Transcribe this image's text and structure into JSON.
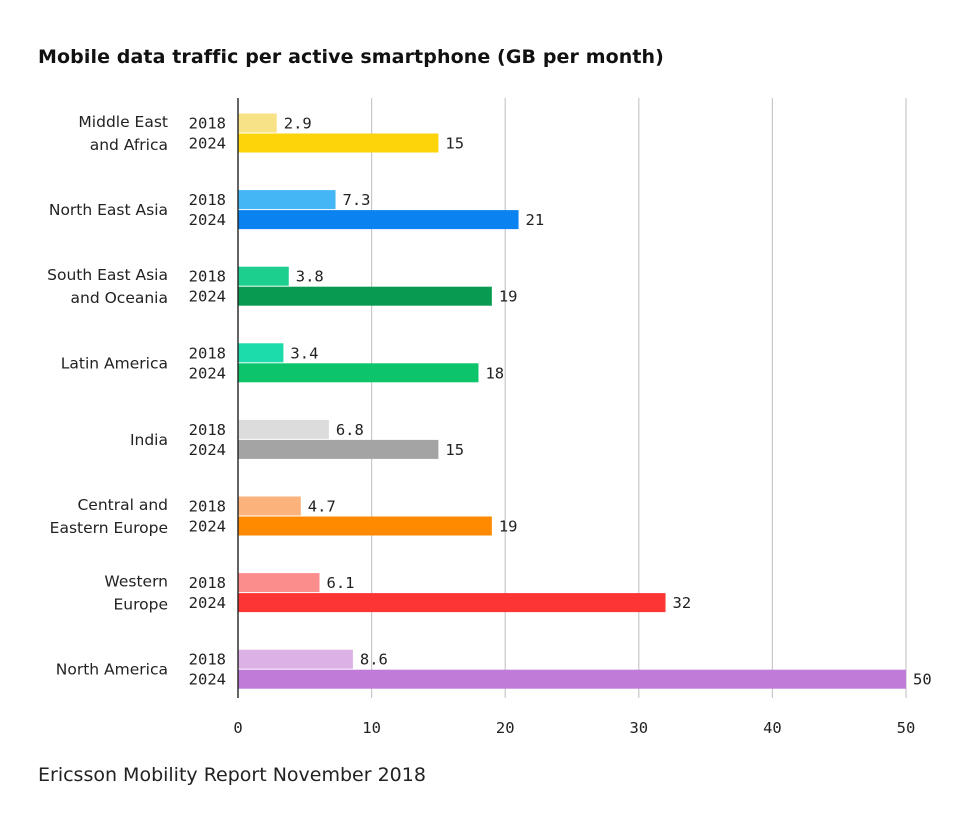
{
  "chart_data": {
    "type": "bar",
    "orientation": "horizontal",
    "title": "Mobile data traffic per active smartphone (GB per month)",
    "xlim": [
      0,
      50
    ],
    "xticks": [
      "0",
      "10",
      "20",
      "30",
      "40",
      "50"
    ],
    "xlabel": "",
    "ylabel": "",
    "grid": true,
    "series_names": [
      "2018",
      "2024"
    ],
    "categories": [
      {
        "lines": [
          "Middle East",
          "and Africa"
        ],
        "values": [
          2.9,
          15
        ],
        "labels": [
          "2.9",
          "15"
        ],
        "colors": [
          "#f8e286",
          "#fdd40a"
        ]
      },
      {
        "lines": [
          "North East Asia"
        ],
        "values": [
          7.3,
          21
        ],
        "labels": [
          "7.3",
          "21"
        ],
        "colors": [
          "#44b5f5",
          "#0a82f0"
        ]
      },
      {
        "lines": [
          "South East Asia",
          "and Oceania"
        ],
        "values": [
          3.8,
          19
        ],
        "labels": [
          "3.8",
          "19"
        ],
        "colors": [
          "#1ccf8f",
          "#089a50"
        ]
      },
      {
        "lines": [
          "Latin America"
        ],
        "values": [
          3.4,
          18
        ],
        "labels": [
          "3.4",
          "18"
        ],
        "colors": [
          "#1bdcaa",
          "#0cc46a"
        ]
      },
      {
        "lines": [
          "India"
        ],
        "values": [
          6.8,
          15
        ],
        "labels": [
          "6.8",
          "15"
        ],
        "colors": [
          "#dcdcdc",
          "#a4a4a4"
        ]
      },
      {
        "lines": [
          "Central and",
          "Eastern Europe"
        ],
        "values": [
          4.7,
          19
        ],
        "labels": [
          "4.7",
          "19"
        ],
        "colors": [
          "#fbb37b",
          "#ff8a00"
        ]
      },
      {
        "lines": [
          "Western",
          "Europe"
        ],
        "values": [
          6.1,
          32
        ],
        "labels": [
          "6.1",
          "32"
        ],
        "colors": [
          "#fb8d8d",
          "#fe3535"
        ]
      },
      {
        "lines": [
          "North America"
        ],
        "values": [
          8.6,
          50
        ],
        "labels": [
          "8.6",
          "50"
        ],
        "colors": [
          "#dcb1e6",
          "#c07ad8"
        ]
      }
    ]
  },
  "footer": "Ericsson Mobility Report November 2018"
}
